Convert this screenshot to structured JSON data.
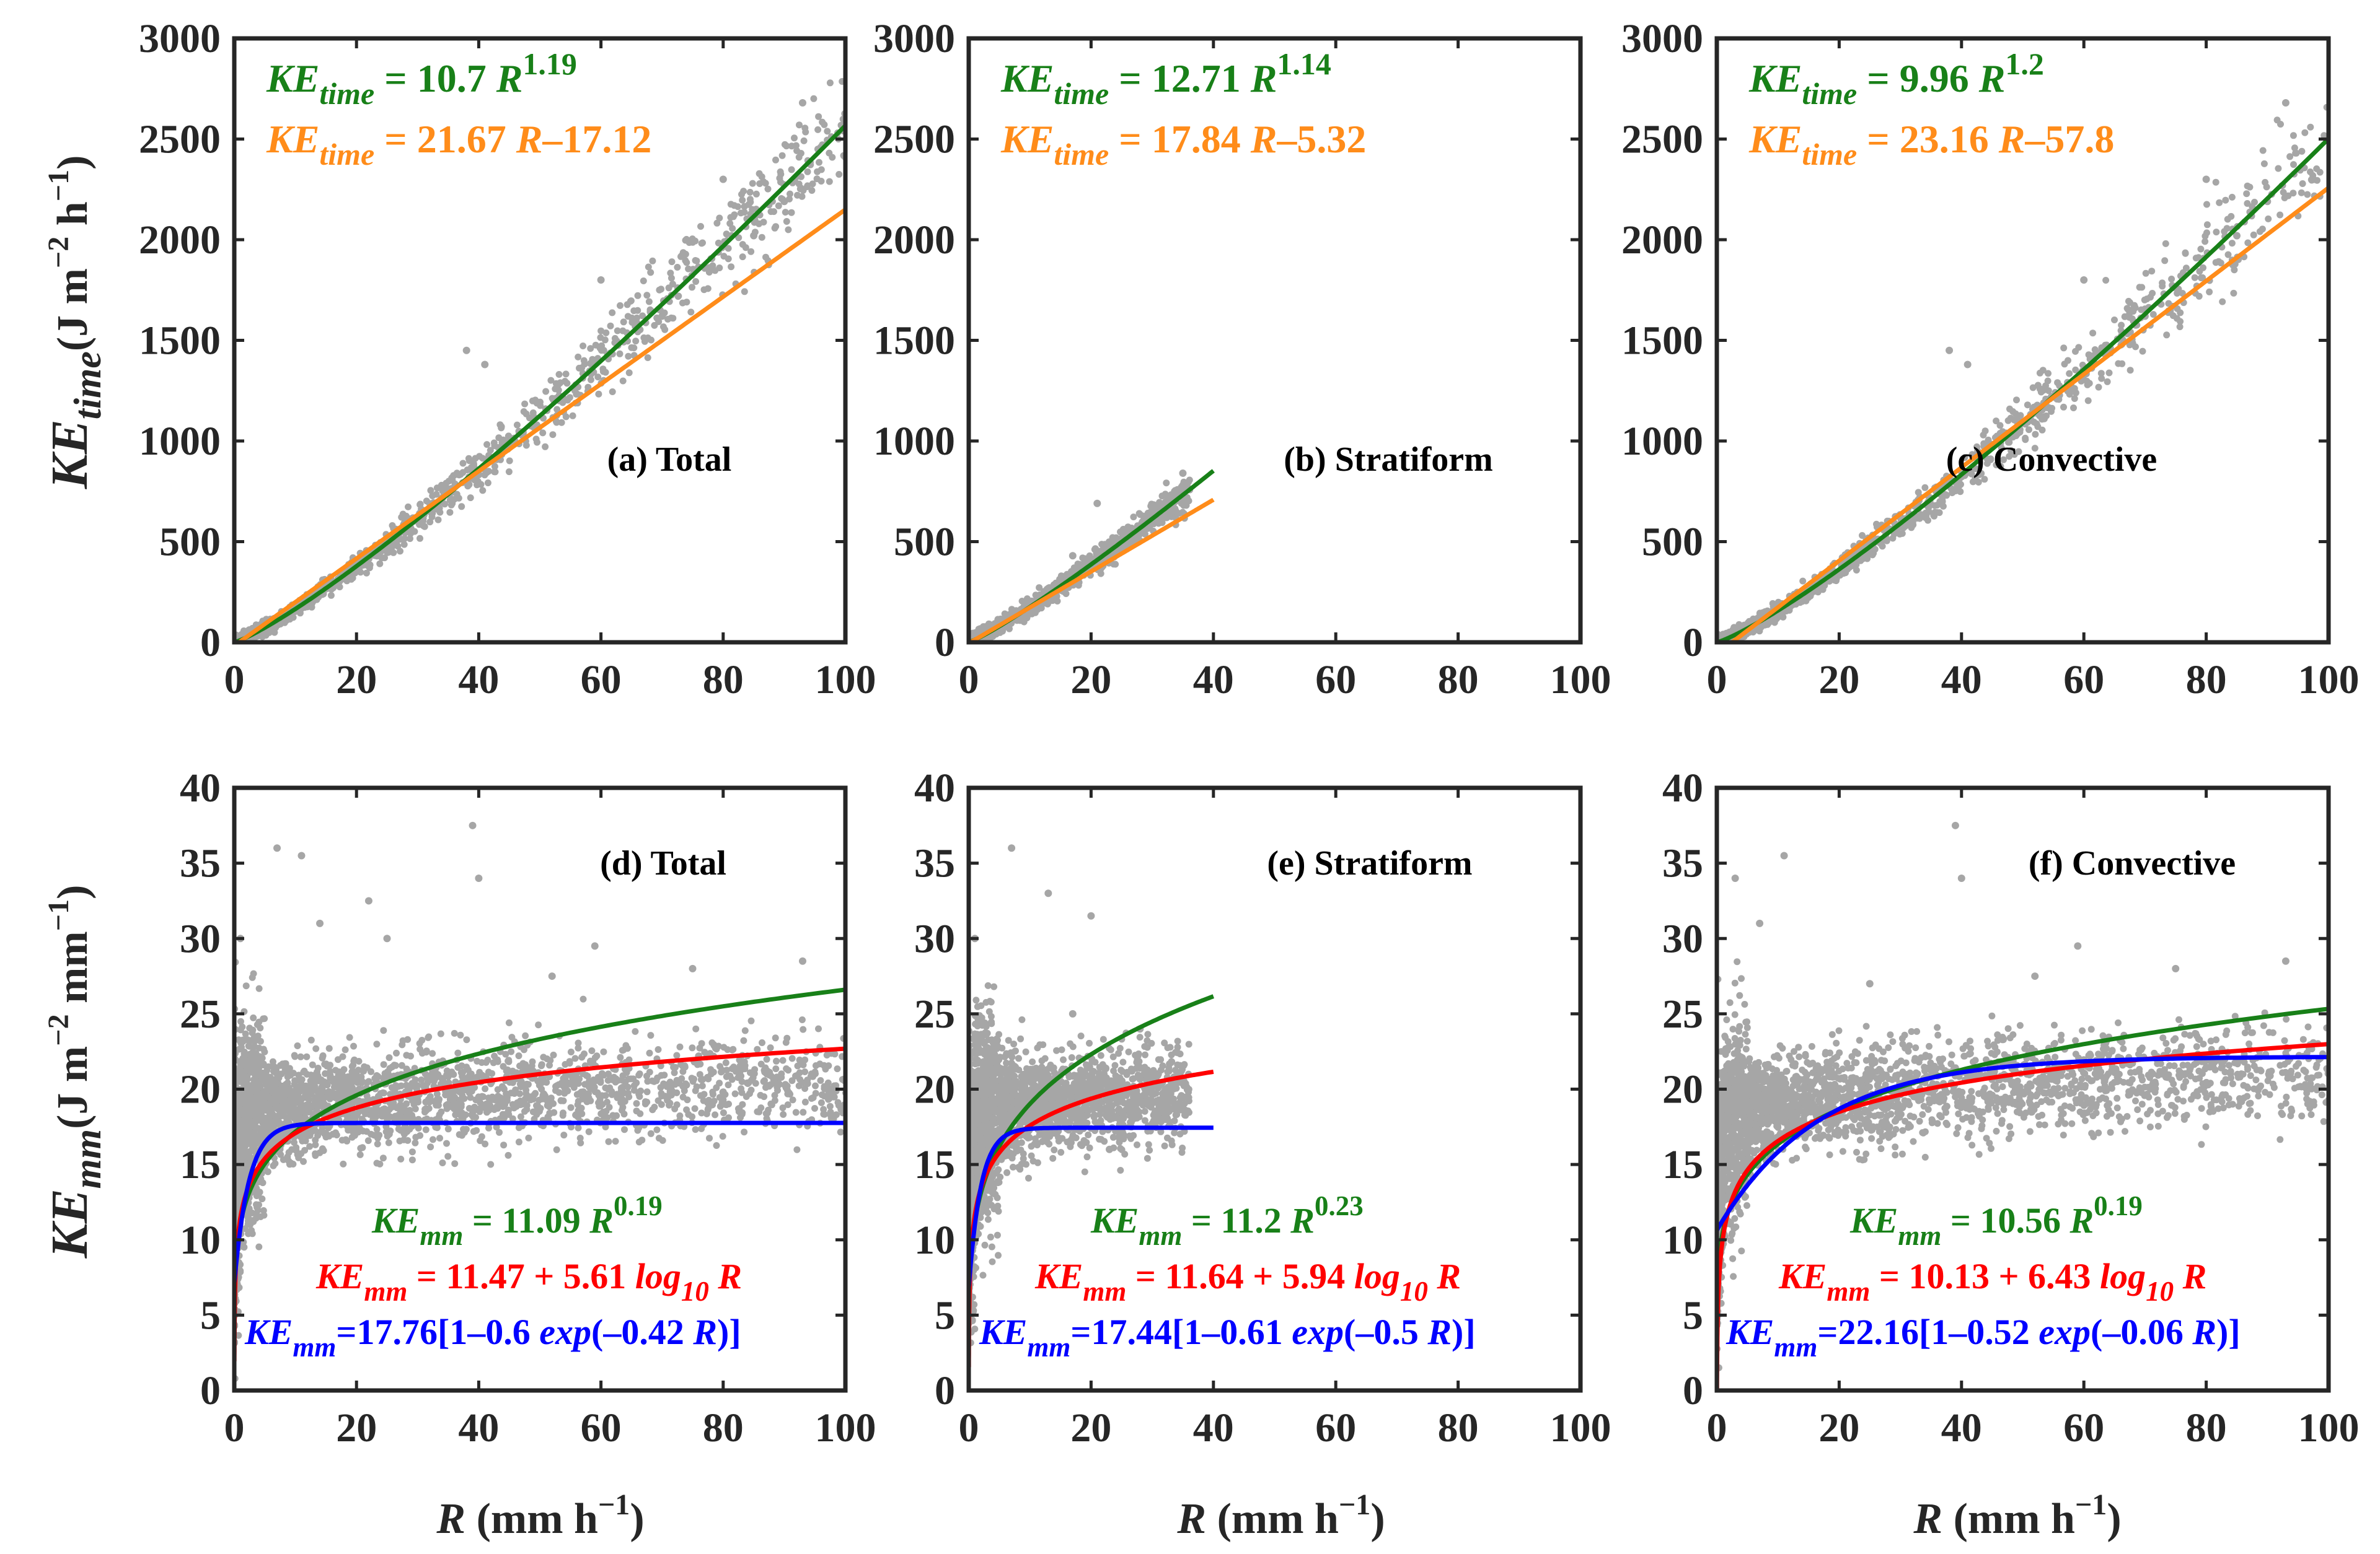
{
  "figure": {
    "colors": {
      "power": "#188018",
      "linear": "#ff8c1a",
      "log": "#ff0000",
      "exp": "#0000ff",
      "points": "#a6a6a6",
      "axes": "#262626"
    }
  },
  "axis_labels": {
    "top_ylabel": {
      "main": "KE",
      "sub": "time",
      "units_open": "(J m",
      "units_exp1": "−2",
      "units_mid": " h",
      "units_exp2": "−1",
      "units_close": ")"
    },
    "bottom_ylabel": {
      "main": "KE",
      "sub": "mm",
      "units_open": "(J m",
      "units_exp1": "−2",
      "units_mid": " mm",
      "units_exp2": "−1",
      "units_close": ")"
    },
    "xlabel": {
      "var": "R",
      "units_open": " (mm h",
      "units_exp": "−1",
      "units_close": ")"
    }
  },
  "chart_data": [
    {
      "type": "scatter",
      "panel": "(a) Total",
      "xlim": [
        0,
        100
      ],
      "ylim": [
        0,
        3000
      ],
      "xticks": [
        "0",
        "20",
        "40",
        "60",
        "80",
        "100"
      ],
      "yticks": [
        "0",
        "500",
        "1000",
        "1500",
        "2000",
        "2500",
        "3000"
      ],
      "equations": [
        {
          "color": "power",
          "lhs": "KE",
          "sub": "time",
          "rhs": " = 10.7 ",
          "var": "R",
          "exp": "1.19"
        },
        {
          "color": "linear",
          "lhs": "KE",
          "sub": "time",
          "rhs": " = 21.67 ",
          "var": "R",
          "tail": "–17.12"
        }
      ],
      "series": [
        {
          "fit": "power",
          "a": 10.7,
          "b": 1.19,
          "x": [
            0,
            100
          ]
        },
        {
          "fit": "linear",
          "slope": 21.67,
          "intercept": -17.12,
          "x": [
            0,
            100
          ]
        }
      ],
      "scatter": {
        "x_max": 100,
        "outliers": [
          [
            93,
            2680
          ],
          [
            80,
            2300
          ],
          [
            60,
            1800
          ],
          [
            38,
            1450
          ],
          [
            41,
            1380
          ],
          [
            70,
            1620
          ],
          [
            85,
            2020
          ],
          [
            90,
            2190
          ]
        ]
      }
    },
    {
      "type": "scatter",
      "panel": "(b) Stratiform",
      "xlim": [
        0,
        100
      ],
      "ylim": [
        0,
        3000
      ],
      "xticks": [
        "0",
        "20",
        "40",
        "60",
        "80",
        "100"
      ],
      "yticks": [
        "0",
        "500",
        "1000",
        "1500",
        "2000",
        "2500",
        "3000"
      ],
      "equations": [
        {
          "color": "power",
          "lhs": "KE",
          "sub": "time",
          "rhs": " = 12.71 ",
          "var": "R",
          "exp": "1.14"
        },
        {
          "color": "linear",
          "lhs": "KE",
          "sub": "time",
          "rhs": " = 17.84 ",
          "var": "R",
          "tail": "–5.32"
        }
      ],
      "series": [
        {
          "fit": "power",
          "a": 12.71,
          "b": 1.14,
          "x": [
            0,
            40
          ]
        },
        {
          "fit": "linear",
          "slope": 17.84,
          "intercept": -5.32,
          "x": [
            0,
            40
          ]
        }
      ],
      "scatter": {
        "x_max": 36,
        "outliers": [
          [
            35,
            840
          ],
          [
            21,
            690
          ],
          [
            29,
            570
          ],
          [
            17,
            430
          ]
        ]
      }
    },
    {
      "type": "scatter",
      "panel": "(c) Convective",
      "xlim": [
        0,
        100
      ],
      "ylim": [
        0,
        3000
      ],
      "xticks": [
        "0",
        "20",
        "40",
        "60",
        "80",
        "100"
      ],
      "yticks": [
        "0",
        "500",
        "1000",
        "1500",
        "2000",
        "2500",
        "3000"
      ],
      "equations": [
        {
          "color": "power",
          "lhs": "KE",
          "sub": "time",
          "rhs": " = 9.96 ",
          "var": "R",
          "exp": "1.2"
        },
        {
          "color": "linear",
          "lhs": "KE",
          "sub": "time",
          "rhs": " = 23.16 ",
          "var": "R",
          "tail": "–57.8"
        }
      ],
      "series": [
        {
          "fit": "power",
          "a": 9.96,
          "b": 1.2,
          "x": [
            0,
            100
          ]
        },
        {
          "fit": "linear",
          "slope": 23.16,
          "intercept": -57.8,
          "x": [
            0,
            100
          ]
        }
      ],
      "scatter": {
        "x_max": 100,
        "outliers": [
          [
            93,
            2680
          ],
          [
            80,
            2300
          ],
          [
            60,
            1800
          ],
          [
            38,
            1450
          ],
          [
            41,
            1380
          ],
          [
            70,
            1620
          ],
          [
            85,
            2020
          ],
          [
            90,
            2190
          ]
        ]
      }
    },
    {
      "type": "scatter",
      "panel": "(d) Total",
      "xlim": [
        0,
        100
      ],
      "ylim": [
        0,
        40
      ],
      "xticks": [
        "0",
        "20",
        "40",
        "60",
        "80",
        "100"
      ],
      "yticks": [
        "0",
        "5",
        "10",
        "15",
        "20",
        "25",
        "30",
        "35",
        "40"
      ],
      "equations": [
        {
          "color": "power",
          "lhs": "KE",
          "sub": "mm",
          "rhs": " = 11.09 ",
          "var": "R",
          "exp": "0.19"
        },
        {
          "color": "log",
          "lhs": "KE",
          "sub": "mm",
          "rhs": " = 11.47 + 5.61 ",
          "fn": "log",
          "fnsub": "10",
          "var": "R"
        },
        {
          "color": "exp",
          "lhs": "KE",
          "sub": "mm",
          "rhs": "=17.76[1–0.6 ",
          "fn": "exp",
          "inner": "(–0.42 ",
          "var": "R",
          "tail": ")]"
        }
      ],
      "series": [
        {
          "fit": "power",
          "a": 11.09,
          "b": 0.19,
          "x": [
            0,
            100
          ]
        },
        {
          "fit": "log",
          "a": 11.47,
          "b": 5.61,
          "x": [
            0,
            100
          ]
        },
        {
          "fit": "exp",
          "a": 17.76,
          "b": 0.6,
          "c": 0.42,
          "x": [
            0,
            100
          ]
        }
      ],
      "scatter": {
        "x_max": 100,
        "outliers": [
          [
            7,
            36
          ],
          [
            11,
            35.5
          ],
          [
            39,
            37.5
          ],
          [
            40,
            34
          ],
          [
            22,
            32.5
          ],
          [
            25,
            30
          ],
          [
            14,
            31
          ],
          [
            59,
            29.5
          ],
          [
            75,
            28
          ],
          [
            93,
            28.5
          ],
          [
            1,
            30
          ],
          [
            52,
            27.5
          ]
        ]
      }
    },
    {
      "type": "scatter",
      "panel": "(e) Stratiform",
      "xlim": [
        0,
        100
      ],
      "ylim": [
        0,
        40
      ],
      "xticks": [
        "0",
        "20",
        "40",
        "60",
        "80",
        "100"
      ],
      "yticks": [
        "0",
        "5",
        "10",
        "15",
        "20",
        "25",
        "30",
        "35",
        "40"
      ],
      "equations": [
        {
          "color": "power",
          "lhs": "KE",
          "sub": "mm",
          "rhs": " = 11.2 ",
          "var": "R",
          "exp": "0.23"
        },
        {
          "color": "log",
          "lhs": "KE",
          "sub": "mm",
          "rhs": " = 11.64 + 5.94 ",
          "fn": "log",
          "fnsub": "10",
          "var": "R"
        },
        {
          "color": "exp",
          "lhs": "KE",
          "sub": "mm",
          "rhs": "=17.44[1–0.61 ",
          "fn": "exp",
          "inner": "(–0.5 ",
          "var": "R",
          "tail": ")]"
        }
      ],
      "series": [
        {
          "fit": "power",
          "a": 11.2,
          "b": 0.23,
          "x": [
            0,
            40
          ]
        },
        {
          "fit": "log",
          "a": 11.64,
          "b": 5.94,
          "x": [
            0,
            40
          ]
        },
        {
          "fit": "exp",
          "a": 17.44,
          "b": 0.61,
          "c": 0.5,
          "x": [
            0,
            40
          ]
        }
      ],
      "scatter": {
        "x_max": 36,
        "outliers": [
          [
            7,
            36
          ],
          [
            13,
            33
          ],
          [
            20,
            31.5
          ],
          [
            28,
            24
          ],
          [
            1,
            30
          ],
          [
            17,
            25
          ],
          [
            23,
            16
          ]
        ]
      }
    },
    {
      "type": "scatter",
      "panel": "(f) Convective",
      "xlim": [
        0,
        100
      ],
      "ylim": [
        0,
        40
      ],
      "xticks": [
        "0",
        "20",
        "40",
        "60",
        "80",
        "100"
      ],
      "yticks": [
        "0",
        "5",
        "10",
        "15",
        "20",
        "25",
        "30",
        "35",
        "40"
      ],
      "equations": [
        {
          "color": "power",
          "lhs": "KE",
          "sub": "mm",
          "rhs": " = 10.56 ",
          "var": "R",
          "exp": "0.19"
        },
        {
          "color": "log",
          "lhs": "KE",
          "sub": "mm",
          "rhs": " = 10.13 + 6.43 ",
          "fn": "log",
          "fnsub": "10",
          "var": "R"
        },
        {
          "color": "exp",
          "lhs": "KE",
          "sub": "mm",
          "rhs": "=22.16[1–0.52 ",
          "fn": "exp",
          "inner": "(–0.06 ",
          "var": "R",
          "tail": ")]"
        }
      ],
      "series": [
        {
          "fit": "power",
          "a": 10.56,
          "b": 0.19,
          "x": [
            0,
            100
          ]
        },
        {
          "fit": "log",
          "a": 10.13,
          "b": 6.43,
          "x": [
            0,
            100
          ]
        },
        {
          "fit": "exp",
          "a": 22.16,
          "b": 0.52,
          "c": 0.06,
          "x": [
            0,
            100
          ]
        }
      ],
      "scatter": {
        "x_max": 100,
        "outliers": [
          [
            39,
            37.5
          ],
          [
            40,
            34
          ],
          [
            11,
            35.5
          ],
          [
            7,
            31
          ],
          [
            59,
            29.5
          ],
          [
            75,
            28
          ],
          [
            93,
            28.5
          ],
          [
            52,
            27.5
          ],
          [
            25,
            27
          ],
          [
            3,
            34
          ]
        ]
      }
    }
  ]
}
